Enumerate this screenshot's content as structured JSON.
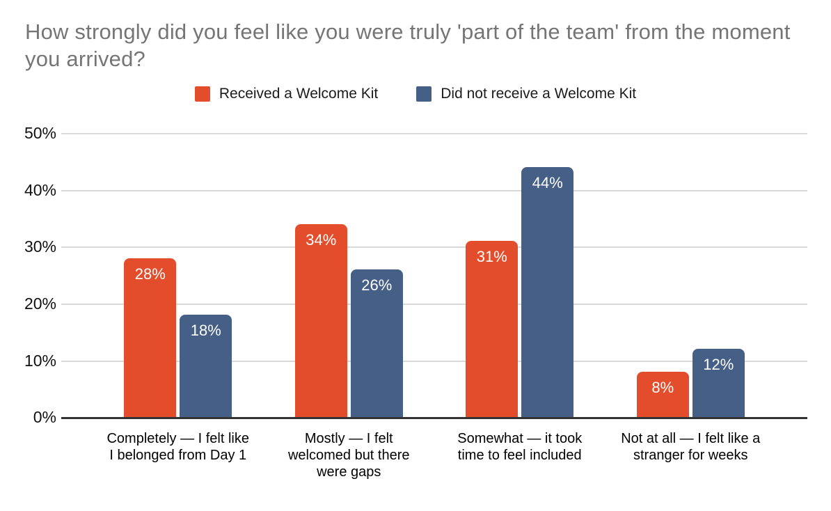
{
  "title": "How strongly did you feel like you were truly 'part of the team' from the moment you arrived?",
  "title_color": "#757575",
  "background_color": "#ffffff",
  "legend": {
    "position": "top",
    "items": [
      {
        "label": "Received a Welcome Kit",
        "color": "#E44D2B"
      },
      {
        "label": "Did not receive a Welcome Kit",
        "color": "#455F87"
      }
    ]
  },
  "axis_colors": {
    "gridline": "#d9d9d9",
    "baseline": "#333333",
    "tick_text": "#111111"
  },
  "chart_data": {
    "type": "bar",
    "title": "How strongly did you feel like you were truly 'part of the team' from the moment you arrived?",
    "categories": [
      "Completely — I felt like I belonged from Day 1",
      "Mostly — I felt welcomed but there were gaps",
      "Somewhat — it took time to feel included",
      "Not at all — I felt like a stranger for weeks"
    ],
    "series": [
      {
        "name": "Received a Welcome Kit",
        "color": "#E44D2B",
        "values": [
          28,
          34,
          31,
          8
        ],
        "data_labels": [
          "28%",
          "34%",
          "31%",
          "8%"
        ]
      },
      {
        "name": "Did not receive a Welcome Kit",
        "color": "#455F87",
        "values": [
          18,
          26,
          44,
          12
        ],
        "data_labels": [
          "18%",
          "26%",
          "44%",
          "12%"
        ]
      }
    ],
    "xlabel": "",
    "ylabel": "",
    "ylim": [
      0,
      50
    ],
    "yticks": [
      {
        "value": 0,
        "label": "0%"
      },
      {
        "value": 10,
        "label": "10%"
      },
      {
        "value": 20,
        "label": "20%"
      },
      {
        "value": 30,
        "label": "30%"
      },
      {
        "value": 40,
        "label": "40%"
      },
      {
        "value": 50,
        "label": "50%"
      }
    ],
    "grid": true,
    "legend_position": "top",
    "data_label_color": "#ffffff"
  }
}
